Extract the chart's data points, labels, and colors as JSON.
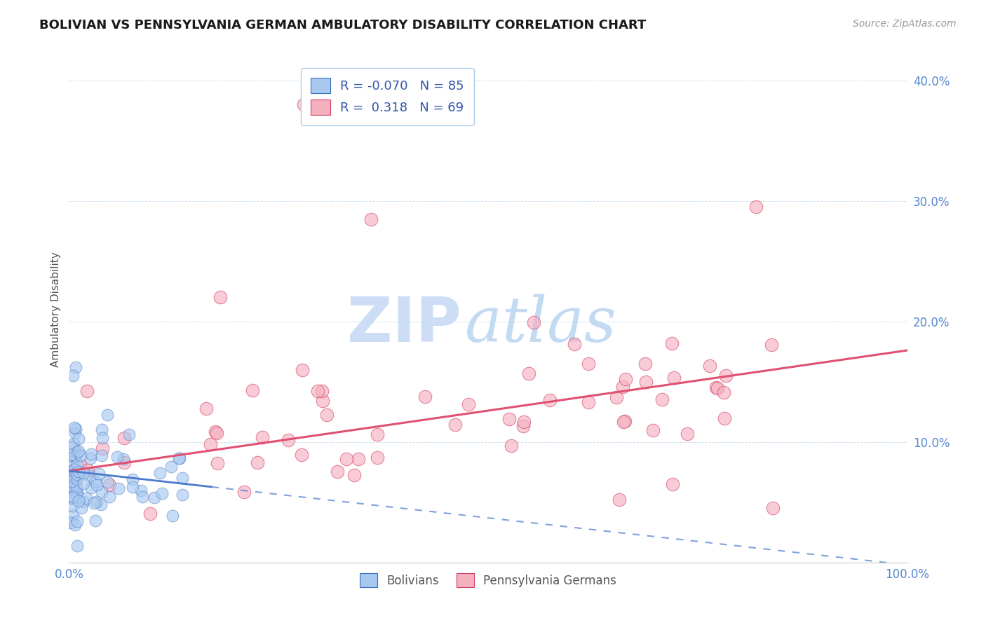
{
  "title": "BOLIVIAN VS PENNSYLVANIA GERMAN AMBULATORY DISABILITY CORRELATION CHART",
  "source": "Source: ZipAtlas.com",
  "ylabel": "Ambulatory Disability",
  "xlim": [
    0,
    1.0
  ],
  "ylim": [
    0,
    0.42
  ],
  "xtick_vals": [
    0.0,
    0.2,
    0.4,
    0.6,
    0.8,
    1.0
  ],
  "ytick_vals": [
    0.0,
    0.1,
    0.2,
    0.3,
    0.4
  ],
  "ytick_labels": [
    "",
    "10.0%",
    "20.0%",
    "30.0%",
    "40.0%"
  ],
  "xtick_labels": [
    "0.0%",
    "",
    "",
    "",
    "",
    "100.0%"
  ],
  "bolivian_R": -0.07,
  "bolivian_N": 85,
  "pennger_R": 0.318,
  "pennger_N": 69,
  "legend_label_bolivian": "Bolivians",
  "legend_label_pennger": "Pennsylvania Germans",
  "bolivian_color": "#a8c8f0",
  "pennger_color": "#f5b0c0",
  "bolivian_edge_color": "#3a6fbb",
  "pennger_edge_color": "#d04060",
  "bolivian_line_color": "#4a7acc",
  "pennger_line_color": "#e05070",
  "watermark_zip_color": "#ccddf5",
  "watermark_atlas_color": "#cce0f0",
  "background_color": "#ffffff",
  "grid_color": "#c8ddf0",
  "title_color": "#1a1a1a",
  "source_color": "#999999",
  "tick_color": "#5588cc",
  "legend_text_color": "#3355aa",
  "pen_trend_intercept": 0.076,
  "pen_trend_slope": 0.1,
  "bol_trend_intercept": 0.076,
  "bol_trend_slope": -0.078
}
